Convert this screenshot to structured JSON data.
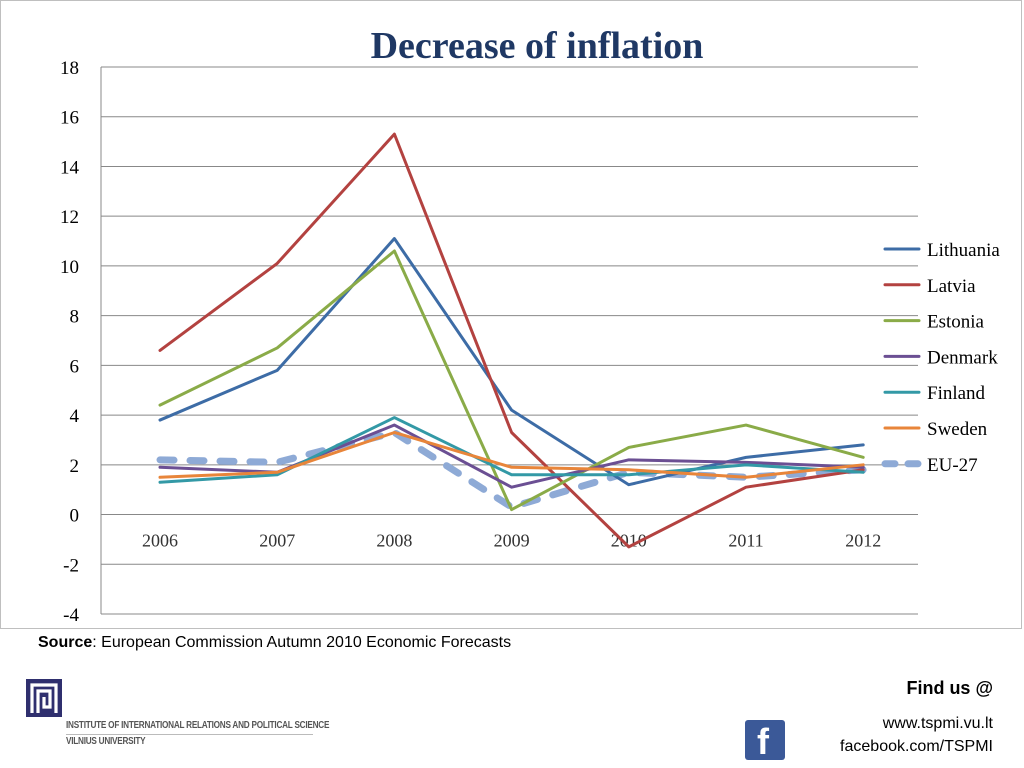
{
  "chart_data": {
    "type": "line",
    "title": "Decrease of inflation",
    "categories": [
      "2006",
      "2007",
      "2008",
      "2009",
      "2010",
      "2011",
      "2012"
    ],
    "ylim": [
      -4,
      18
    ],
    "yticks": [
      "18",
      "16",
      "14",
      "12",
      "10",
      "8",
      "6",
      "4",
      "2",
      "0",
      "-2",
      "-4"
    ],
    "grid": true,
    "legend_position": "right",
    "series": [
      {
        "name": "Lithuania",
        "color": "#3d6ca6",
        "values": [
          3.8,
          5.8,
          11.1,
          4.2,
          1.2,
          2.3,
          2.8
        ]
      },
      {
        "name": "Latvia",
        "color": "#b34240",
        "values": [
          6.6,
          10.1,
          15.3,
          3.3,
          -1.3,
          1.1,
          1.8
        ]
      },
      {
        "name": "Estonia",
        "color": "#8aab48",
        "values": [
          4.4,
          6.7,
          10.6,
          0.2,
          2.7,
          3.6,
          2.3
        ]
      },
      {
        "name": "Denmark",
        "color": "#6b4f93",
        "values": [
          1.9,
          1.7,
          3.6,
          1.1,
          2.2,
          2.1,
          1.9
        ]
      },
      {
        "name": "Finland",
        "color": "#3399a6",
        "values": [
          1.3,
          1.6,
          3.9,
          1.6,
          1.6,
          2.0,
          1.7
        ]
      },
      {
        "name": "Sweden",
        "color": "#e8853a",
        "values": [
          1.5,
          1.7,
          3.3,
          1.9,
          1.8,
          1.5,
          2.0
        ]
      },
      {
        "name": "EU-27",
        "color": "#8eaad6",
        "dashed": true,
        "values": [
          2.2,
          2.1,
          3.3,
          0.3,
          1.7,
          1.5,
          1.8
        ]
      }
    ]
  },
  "footer": {
    "source_bold": "Source",
    "source_text": ": European Commission  Autumn 2010 Economic Forecasts",
    "institute_line1": "INSTITUTE OF INTERNATIONAL RELATIONS AND POLITICAL SCIENCE",
    "institute_line2": "VILNIUS UNIVERSITY",
    "find_us": "Find us @",
    "website": "www.tspmi.vu.lt",
    "facebook": "facebook.com/TSPMI",
    "facebook_icon": "facebook-icon",
    "logo_icon": "institute-logo-icon"
  }
}
